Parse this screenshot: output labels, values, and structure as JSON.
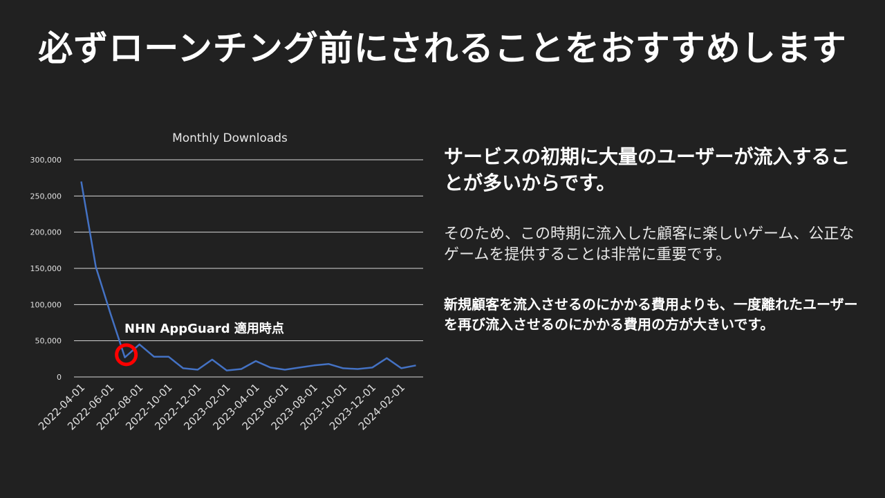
{
  "slide": {
    "title": "必ずローンチング前にされることをおすすめします",
    "headline": "サービスの初期に大量のユーザーが流入することが多いからです。",
    "body": "そのため、この時期に流入した顧客に楽しいゲーム、公正なゲームを提供することは非常に重要です。",
    "bold_note": "新規顧客を流入させるのにかかる費用よりも、一度離れたユーザーを再び流入させるのにかかる費用の方が大きいです。"
  },
  "colors": {
    "background": "#212121",
    "line": "#4472C4",
    "marker": "#ff0000",
    "grid": "#d9d9d9"
  },
  "chart_data": {
    "type": "line",
    "title": "Monthly Downloads",
    "x": [
      "2022-04-01",
      "2022-05-01",
      "2022-06-01",
      "2022-07-01",
      "2022-08-01",
      "2022-09-01",
      "2022-10-01",
      "2022-11-01",
      "2022-12-01",
      "2023-01-01",
      "2023-02-01",
      "2023-03-01",
      "2023-04-01",
      "2023-05-01",
      "2023-06-01",
      "2023-07-01",
      "2023-08-01",
      "2023-09-01",
      "2023-10-01",
      "2023-11-01",
      "2023-12-01",
      "2024-01-01",
      "2024-02-01",
      "2024-03-01"
    ],
    "x_tick_labels": [
      "2022-04-01",
      "2022-06-01",
      "2022-08-01",
      "2022-10-01",
      "2022-12-01",
      "2023-02-01",
      "2023-04-01",
      "2023-06-01",
      "2023-08-01",
      "2023-10-01",
      "2023-12-01",
      "2024-02-01"
    ],
    "series": [
      {
        "values": [
          270000,
          152000,
          88000,
          27000,
          45000,
          28000,
          28000,
          12000,
          10000,
          24000,
          9000,
          11000,
          22000,
          13000,
          10000,
          13000,
          16000,
          18000,
          12000,
          11000,
          13000,
          26000,
          12000,
          16000
        ]
      }
    ],
    "ylim": [
      0,
      300000
    ],
    "y_ticks": [
      0,
      50000,
      100000,
      150000,
      200000,
      250000,
      300000
    ],
    "y_tick_labels": [
      "0",
      "50,000",
      "100,000",
      "150,000",
      "200,000",
      "250,000",
      "300,000"
    ],
    "grid": true,
    "annotation": {
      "text": "NHN AppGuard 適用時点",
      "x": "2022-07-01",
      "y": 25000
    }
  }
}
